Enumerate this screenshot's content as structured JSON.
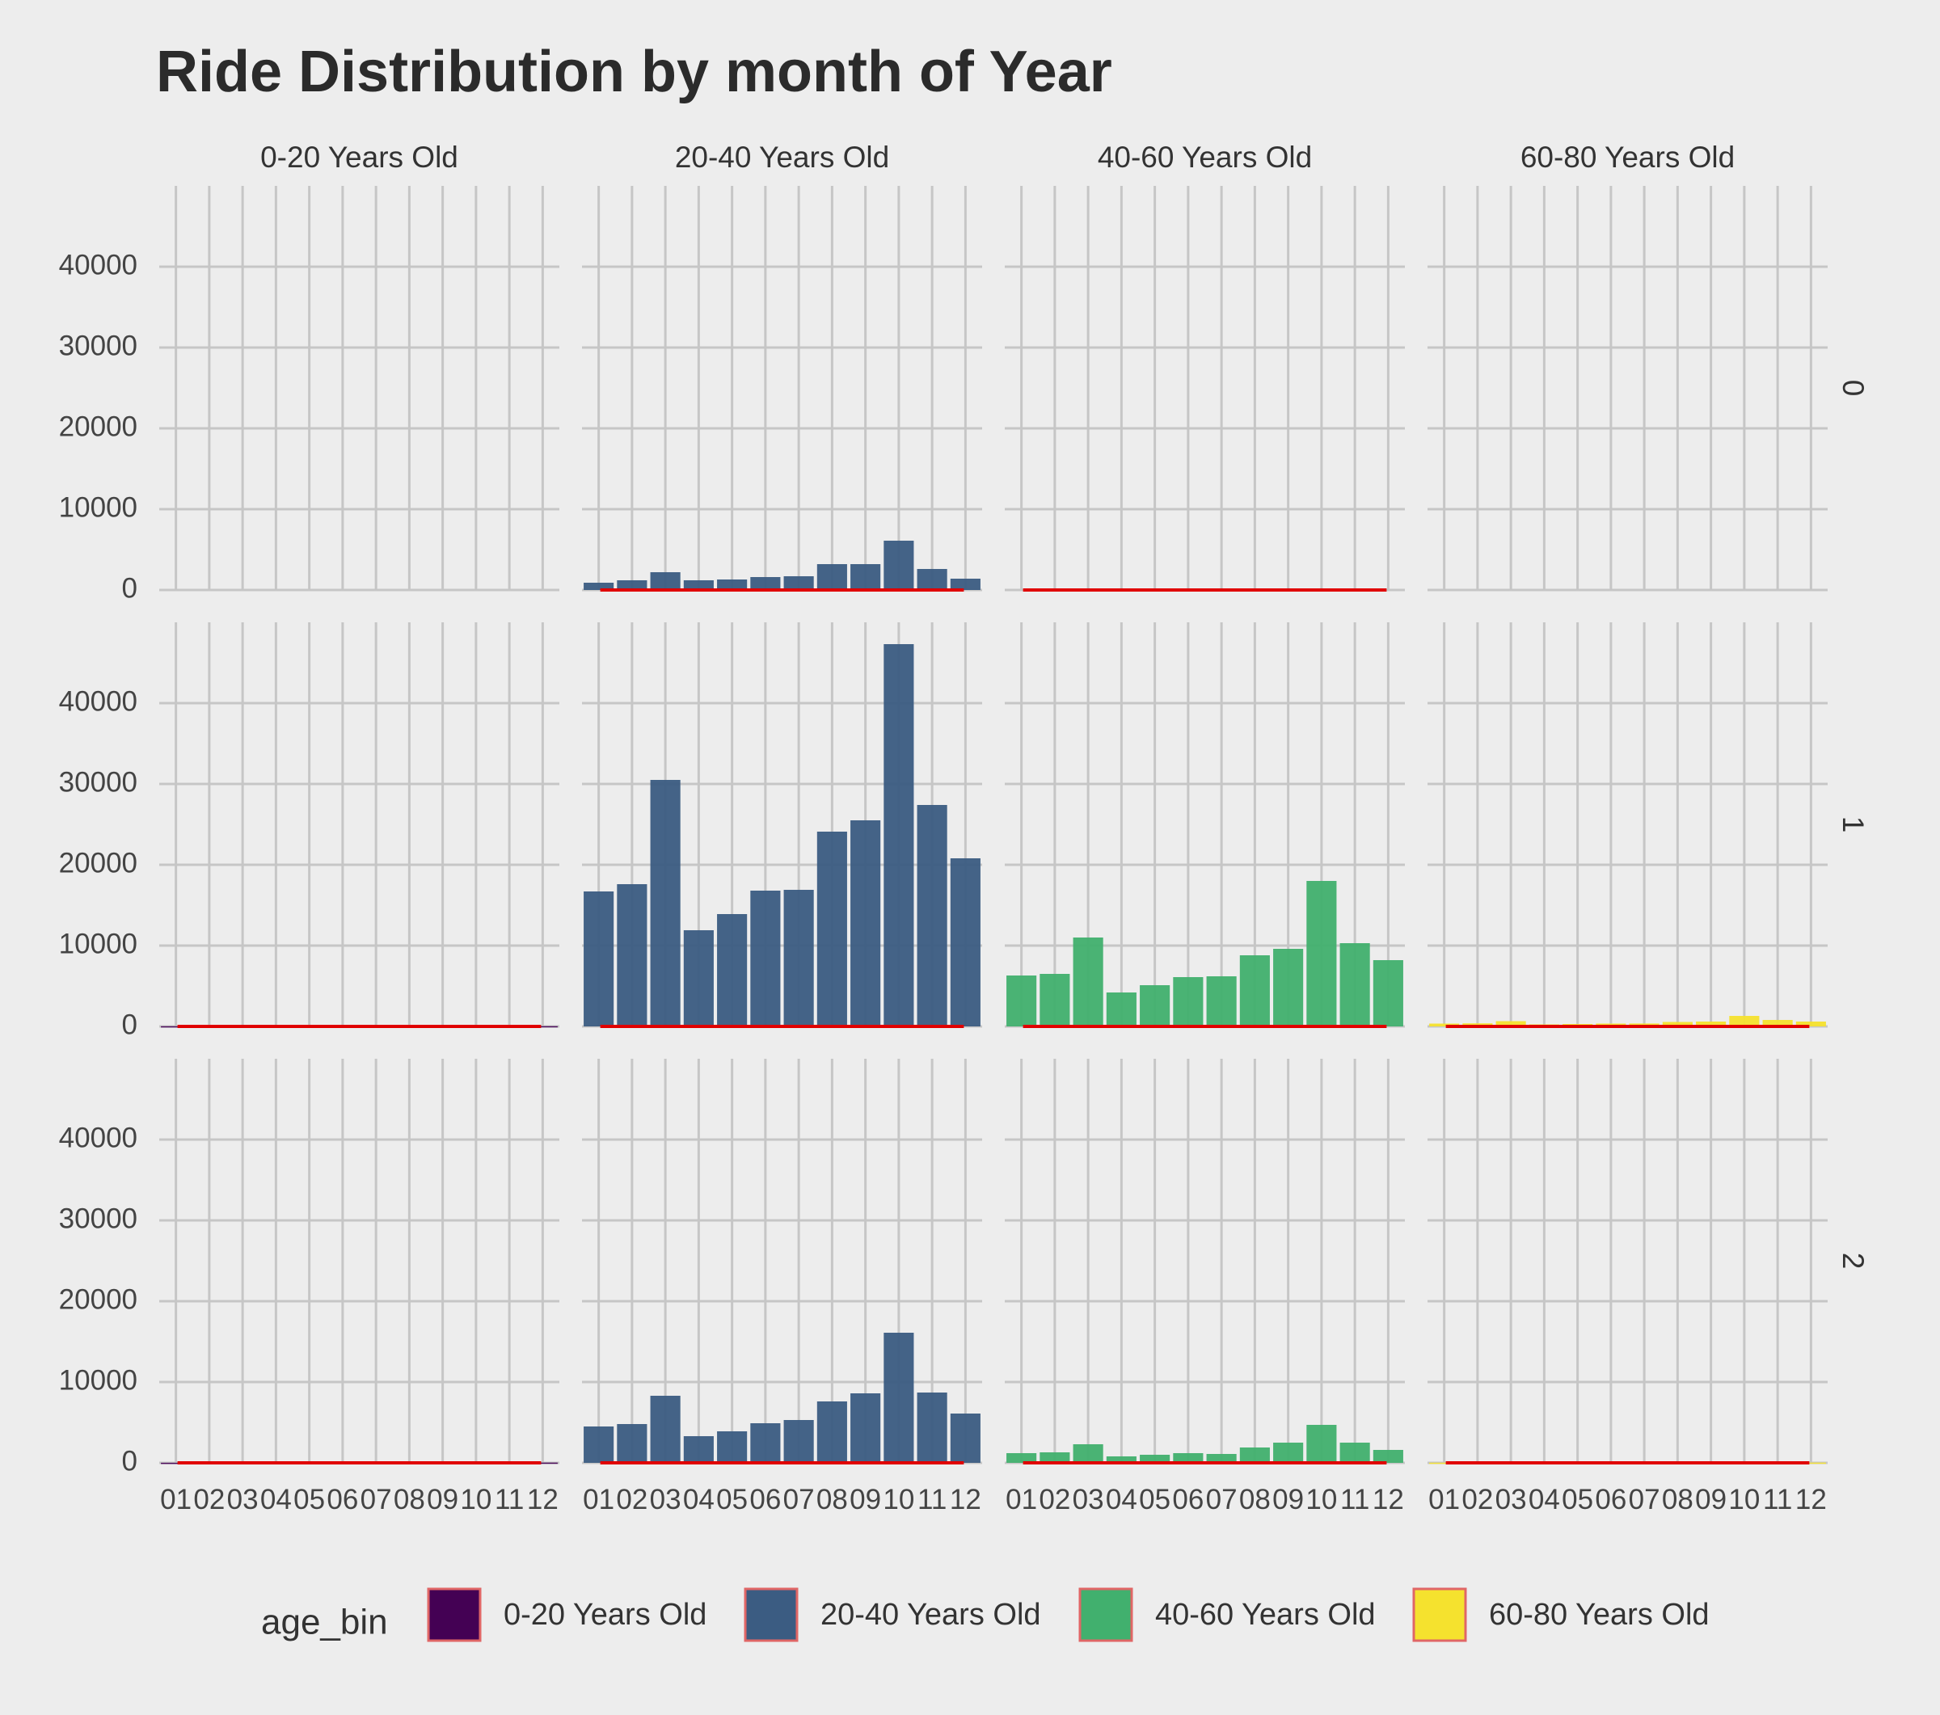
{
  "chart_data": {
    "type": "bar",
    "title": "Ride Distribution by month of Year",
    "xlabel": "",
    "ylabel": "",
    "categories": [
      "01",
      "02",
      "03",
      "04",
      "05",
      "06",
      "07",
      "08",
      "09",
      "10",
      "11",
      "12"
    ],
    "facet_columns": [
      "0-20 Years Old",
      "20-40 Years Old",
      "40-60 Years Old",
      "60-80 Years Old"
    ],
    "facet_rows": [
      "0",
      "1",
      "2"
    ],
    "ylim": [
      0,
      50000
    ],
    "y_ticks": [
      0,
      10000,
      20000,
      30000,
      40000
    ],
    "grid": true,
    "legend": {
      "title": "age_bin",
      "position": "bottom",
      "items": [
        "0-20 Years Old",
        "20-40 Years Old",
        "40-60 Years Old",
        "60-80 Years Old"
      ]
    },
    "colors": {
      "0-20 Years Old": "#440154",
      "20-40 Years Old": "#3b5c82",
      "40-60 Years Old": "#41b06e",
      "60-80 Years Old": "#f5e22e",
      "trend_line": "#e00000",
      "legend_border": "#e06666"
    },
    "series": [
      {
        "row": "0",
        "column": "0-20 Years Old",
        "values": [
          0,
          0,
          0,
          0,
          0,
          0,
          0,
          0,
          0,
          0,
          0,
          0
        ]
      },
      {
        "row": "0",
        "column": "20-40 Years Old",
        "values": [
          900,
          1200,
          2200,
          1200,
          1300,
          1600,
          1700,
          3200,
          3200,
          6100,
          2600,
          1400
        ]
      },
      {
        "row": "0",
        "column": "40-60 Years Old",
        "values": [
          0,
          0,
          0,
          0,
          0,
          0,
          0,
          0,
          0,
          0,
          0,
          0
        ]
      },
      {
        "row": "0",
        "column": "60-80 Years Old",
        "values": [
          0,
          0,
          0,
          0,
          0,
          0,
          0,
          0,
          0,
          0,
          0,
          0
        ]
      },
      {
        "row": "1",
        "column": "0-20 Years Old",
        "values": [
          20,
          20,
          40,
          20,
          20,
          30,
          30,
          40,
          40,
          80,
          40,
          30
        ]
      },
      {
        "row": "1",
        "column": "20-40 Years Old",
        "values": [
          16700,
          17600,
          30500,
          11900,
          13900,
          16800,
          16900,
          24100,
          25500,
          47300,
          27400,
          20800
        ]
      },
      {
        "row": "1",
        "column": "40-60 Years Old",
        "values": [
          6300,
          6500,
          11000,
          4200,
          5100,
          6100,
          6200,
          8800,
          9600,
          18000,
          10300,
          8200
        ]
      },
      {
        "row": "1",
        "column": "60-80 Years Old",
        "values": [
          350,
          380,
          650,
          250,
          300,
          350,
          360,
          550,
          600,
          1300,
          800,
          600
        ]
      },
      {
        "row": "2",
        "column": "0-20 Years Old",
        "values": [
          10,
          10,
          20,
          10,
          10,
          10,
          10,
          20,
          20,
          100,
          60,
          30
        ]
      },
      {
        "row": "2",
        "column": "20-40 Years Old",
        "values": [
          4500,
          4800,
          8300,
          3300,
          3900,
          4900,
          5300,
          7600,
          8600,
          16100,
          8700,
          6100
        ]
      },
      {
        "row": "2",
        "column": "40-60 Years Old",
        "values": [
          1200,
          1300,
          2300,
          800,
          1000,
          1200,
          1100,
          1900,
          2500,
          4700,
          2500,
          1600
        ]
      },
      {
        "row": "2",
        "column": "60-80 Years Old",
        "values": [
          20,
          20,
          40,
          15,
          20,
          20,
          20,
          30,
          40,
          80,
          40,
          30
        ]
      }
    ],
    "trend_line_values": [
      {
        "row": "0",
        "column": "20-40 Years Old",
        "value": 0
      },
      {
        "row": "0",
        "column": "40-60 Years Old",
        "value": 0
      },
      {
        "row": "1",
        "column": "0-20 Years Old",
        "value": 0
      },
      {
        "row": "1",
        "column": "20-40 Years Old",
        "value": 0
      },
      {
        "row": "1",
        "column": "40-60 Years Old",
        "value": 0
      },
      {
        "row": "1",
        "column": "60-80 Years Old",
        "value": 0
      },
      {
        "row": "2",
        "column": "0-20 Years Old",
        "value": 0
      },
      {
        "row": "2",
        "column": "20-40 Years Old",
        "value": 0
      },
      {
        "row": "2",
        "column": "40-60 Years Old",
        "value": 0
      },
      {
        "row": "2",
        "column": "60-80 Years Old",
        "value": 0
      }
    ]
  }
}
